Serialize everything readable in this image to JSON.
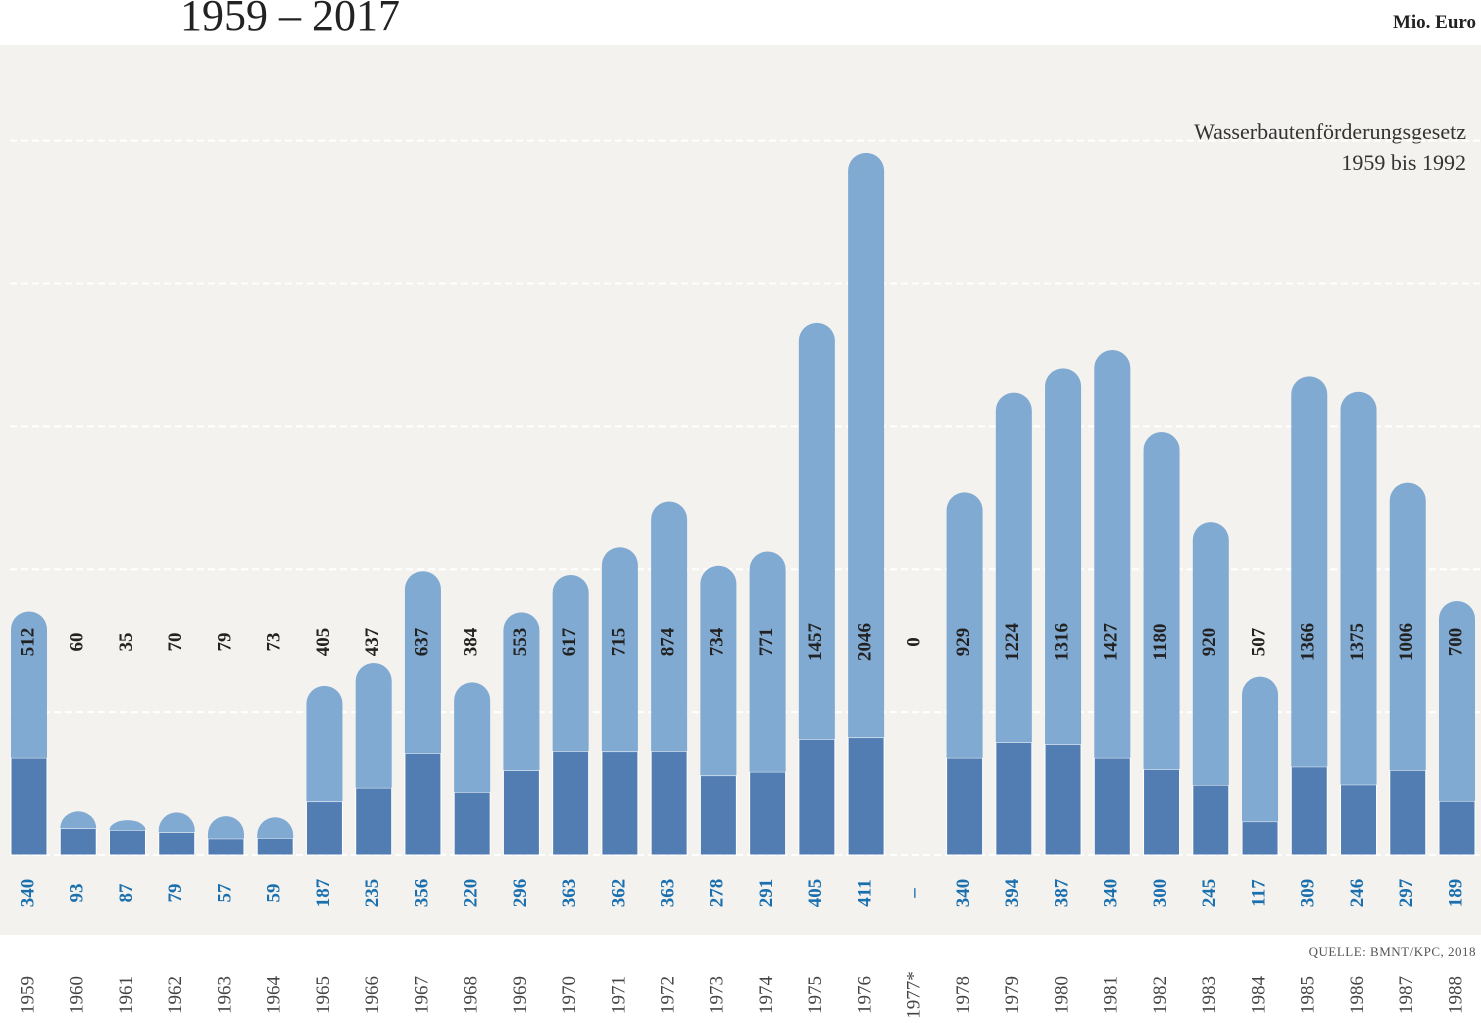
{
  "chart_data": {
    "type": "bar",
    "stacked": true,
    "title": "1959 – 2017",
    "unit_label": "Mio. Euro",
    "annotation": [
      "Wasserbautenförderungsgesetz",
      "1959 bis 1992"
    ],
    "source": "QUELLE: BMNT/KPC, 2018",
    "categories": [
      "1959",
      "1960",
      "1961",
      "1962",
      "1963",
      "1964",
      "1965",
      "1966",
      "1967",
      "1968",
      "1969",
      "1970",
      "1971",
      "1972",
      "1973",
      "1974",
      "1975",
      "1976",
      "1977*",
      "1978",
      "1979",
      "1980",
      "1981",
      "1982",
      "1983",
      "1984",
      "1985",
      "1986",
      "1987",
      "1988"
    ],
    "series": [
      {
        "color": "#527db3",
        "values": [
          340,
          93,
          87,
          79,
          57,
          59,
          187,
          235,
          356,
          220,
          296,
          363,
          362,
          363,
          278,
          291,
          405,
          411,
          null,
          340,
          394,
          387,
          340,
          300,
          245,
          117,
          309,
          246,
          297,
          189
        ],
        "value_labels": [
          "340",
          "93",
          "87",
          "79",
          "57",
          "59",
          "187",
          "235",
          "356",
          "220",
          "296",
          "363",
          "362",
          "363",
          "278",
          "291",
          "405",
          "411",
          "–",
          "340",
          "394",
          "387",
          "340",
          "300",
          "245",
          "117",
          "309",
          "246",
          "297",
          "189"
        ]
      },
      {
        "color": "#80aad1",
        "values": [
          512,
          60,
          35,
          70,
          79,
          73,
          405,
          437,
          637,
          384,
          553,
          617,
          715,
          874,
          734,
          771,
          1457,
          2046,
          0,
          929,
          1224,
          1316,
          1427,
          1180,
          920,
          507,
          1366,
          1375,
          1006,
          700
        ]
      }
    ],
    "ylim": [
      0,
      2600
    ],
    "yticks": [
      0,
      500,
      1000,
      1500,
      2000,
      2500
    ],
    "grid": true
  }
}
